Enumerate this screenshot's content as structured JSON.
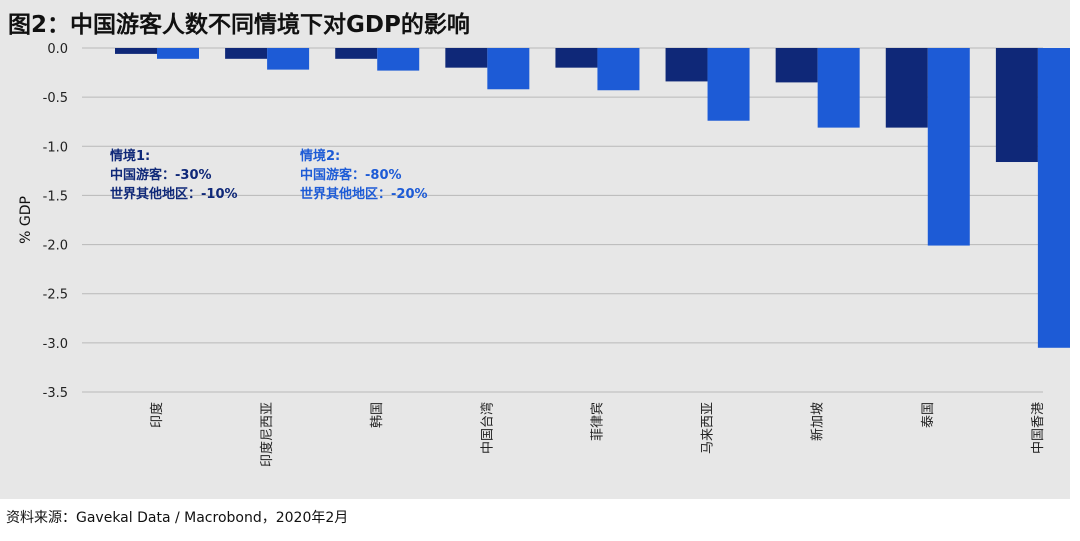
{
  "source": "资料来源：Gavekal Data / Macrobond，2020年2月",
  "colors": {
    "scenario1": "#0f2878",
    "scenario2": "#1d5bd6",
    "grid": "#b9b9b9",
    "panel": "#e7e7e7"
  },
  "chart_data": {
    "type": "bar",
    "title": "图2：中国游客人数不同情境下对GDP的影响",
    "xlabel": "",
    "ylabel": "% GDP",
    "ylim": [
      -3.5,
      0.0
    ],
    "yticks": [
      0.0,
      -0.5,
      -1.0,
      -1.5,
      -2.0,
      -2.5,
      -3.0,
      -3.5
    ],
    "ytick_labels": [
      "0.0",
      "-0.5",
      "-1.0",
      "-1.5",
      "-2.0",
      "-2.5",
      "-3.0",
      "-3.5"
    ],
    "grid": true,
    "categories": [
      "印度",
      "印度尼西亚",
      "韩国",
      "中国台湾",
      "菲律宾",
      "马来西亚",
      "新加坡",
      "泰国",
      "中国香港"
    ],
    "series": [
      {
        "name": "情境1",
        "values": [
          -0.06,
          -0.11,
          -0.11,
          -0.2,
          -0.2,
          -0.34,
          -0.35,
          -0.81,
          -1.16
        ]
      },
      {
        "name": "情境2",
        "values": [
          -0.11,
          -0.22,
          -0.23,
          -0.42,
          -0.43,
          -0.74,
          -0.81,
          -2.01,
          -3.05
        ]
      }
    ],
    "annotations": [
      {
        "series": 0,
        "lines": [
          "情境1:",
          "中国游客：-30%",
          "世界其他地区：-10%"
        ]
      },
      {
        "series": 1,
        "lines": [
          "情境2:",
          "中国游客：-80%",
          "世界其他地区：-20%"
        ]
      }
    ]
  }
}
